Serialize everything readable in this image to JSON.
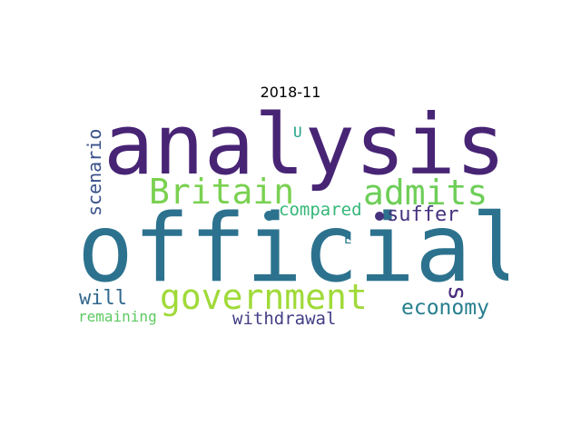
{
  "title": "2018-11",
  "words": [
    {
      "text": "analysis",
      "color": "#482475"
    },
    {
      "text": "official",
      "color": "#2c728e"
    },
    {
      "text": "Britain",
      "color": "#7ad151"
    },
    {
      "text": "admits",
      "color": "#6ece58"
    },
    {
      "text": "government",
      "color": "#a0da39"
    },
    {
      "text": "suffer",
      "color": "#46327e"
    },
    {
      "text": "compared",
      "color": "#35b779"
    },
    {
      "text": "economy",
      "color": "#277f8e"
    },
    {
      "text": "withdrawal",
      "color": "#433e85"
    },
    {
      "text": "will",
      "color": "#31688e"
    },
    {
      "text": "remaining",
      "color": "#5ec962"
    },
    {
      "text": "scenario",
      "color": "#3b528b"
    },
    {
      "text": "s",
      "color": "#472d7b"
    },
    {
      "text": "U",
      "color": "#1fa187"
    },
    {
      "text": "E",
      "color": "#2a788e"
    }
  ],
  "dot_colors": [
    "#2c728e",
    "#46327e"
  ]
}
